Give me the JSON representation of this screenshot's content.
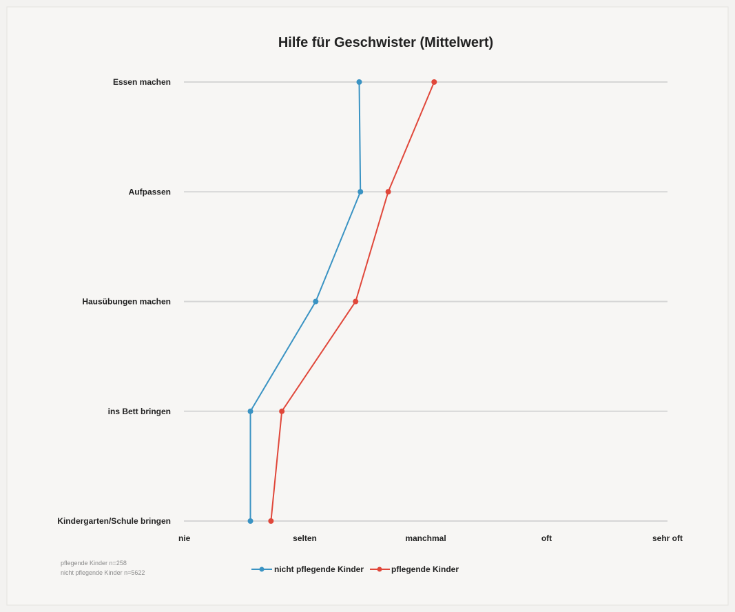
{
  "chart_data": {
    "type": "line",
    "title": "Hilfe für Geschwister (Mittelwert)",
    "xlabel": "",
    "ylabel": "",
    "x_ticks": [
      "nie",
      "selten",
      "manchmal",
      "oft",
      "sehr oft"
    ],
    "xlim": [
      1,
      5
    ],
    "categories": [
      "Essen machen",
      "Aufpassen",
      "Hausübungen machen",
      "ins Bett bringen",
      "Kindergarten/Schule bringen"
    ],
    "series": [
      {
        "name": "nicht pflegende Kinder",
        "color": "#3a93c3",
        "values": [
          2.45,
          2.46,
          2.09,
          1.55,
          1.55
        ]
      },
      {
        "name": "pflegende Kinder",
        "color": "#e0473a",
        "values": [
          3.07,
          2.69,
          2.42,
          1.81,
          1.72
        ]
      }
    ],
    "grid": true,
    "legend": "bottom",
    "notes": [
      "pflegende Kinder n=258",
      "nicht pflegende Kinder n=5622"
    ]
  }
}
